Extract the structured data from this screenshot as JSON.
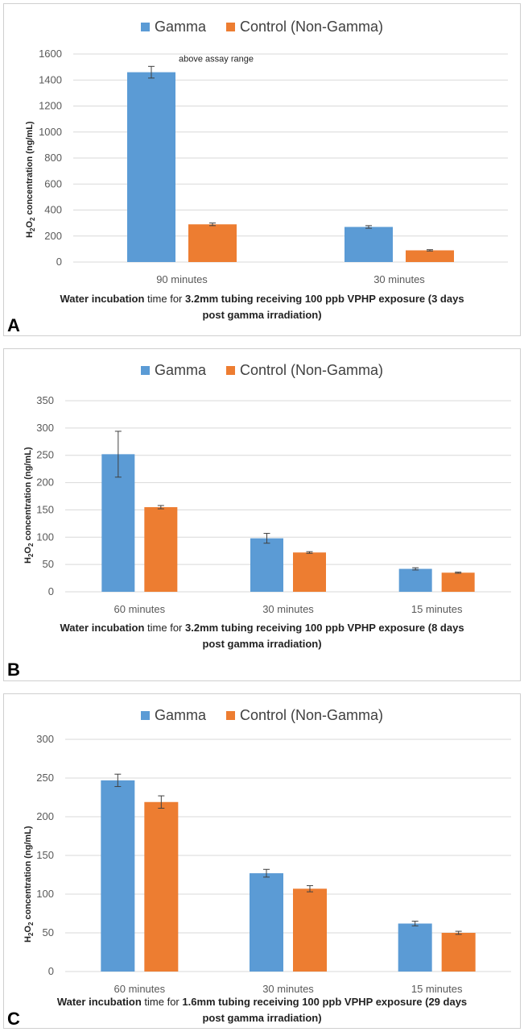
{
  "colors": {
    "gamma": "#5b9bd5",
    "control": "#ed7d31",
    "grid": "#d9d9d9",
    "axis_text": "#595959"
  },
  "chart_data": [
    {
      "panel": "A",
      "type": "bar",
      "legend": [
        "Gamma",
        "Control (Non-Gamma)"
      ],
      "legend_position": "top",
      "categories": [
        "90 minutes",
        "30 minutes"
      ],
      "series": [
        {
          "name": "Gamma",
          "values": [
            1460,
            270
          ],
          "errors": [
            45,
            10
          ]
        },
        {
          "name": "Control (Non-Gamma)",
          "values": [
            290,
            90
          ],
          "errors": [
            10,
            5
          ]
        }
      ],
      "ylim": [
        0,
        1600
      ],
      "yticks": [
        0,
        200,
        400,
        600,
        800,
        1000,
        1200,
        1400,
        1600
      ],
      "annotation": "above assay range",
      "ylabel_main": "H",
      "ylabel_sub1": "2",
      "ylabel_mid": "O",
      "ylabel_sub2": "2",
      "ylabel_rest": " concentration (ng/mL)",
      "xlabel_bold_1": "Water incubation",
      "xlabel_normal": " time for ",
      "xlabel_bold_2": " 3.2mm tubing receiving 100 ppb VPHP exposure (3 days",
      "xlabel_line2": "post gamma irradiation)",
      "grid": true
    },
    {
      "panel": "B",
      "type": "bar",
      "legend": [
        "Gamma",
        "Control (Non-Gamma)"
      ],
      "legend_position": "top",
      "categories": [
        "60 minutes",
        "30 minutes",
        "15 minutes"
      ],
      "series": [
        {
          "name": "Gamma",
          "values": [
            252,
            98,
            42
          ],
          "errors": [
            42,
            9,
            2
          ]
        },
        {
          "name": "Control (Non-Gamma)",
          "values": [
            155,
            72,
            35
          ],
          "errors": [
            3,
            1.5,
            1
          ]
        }
      ],
      "ylim": [
        0,
        350
      ],
      "yticks": [
        0,
        50,
        100,
        150,
        200,
        250,
        300,
        350
      ],
      "ylabel_main": "H",
      "ylabel_sub1": "2",
      "ylabel_mid": "O",
      "ylabel_sub2": "2",
      "ylabel_rest": " concentration (ng/mL)",
      "xlabel_bold_1": "Water incubation",
      "xlabel_normal": " time for ",
      "xlabel_bold_2": " 3.2mm tubing receiving 100 ppb VPHP exposure (8 days",
      "xlabel_line2": "post gamma irradiation)",
      "grid": true
    },
    {
      "panel": "C",
      "type": "bar",
      "legend": [
        "Gamma",
        "Control (Non-Gamma)"
      ],
      "legend_position": "top",
      "categories": [
        "60 minutes",
        "30 minutes",
        "15 minutes"
      ],
      "series": [
        {
          "name": "Gamma",
          "values": [
            247,
            127,
            62
          ],
          "errors": [
            8,
            5,
            3
          ]
        },
        {
          "name": "Control (Non-Gamma)",
          "values": [
            219,
            107,
            50
          ],
          "errors": [
            8,
            4,
            2
          ]
        }
      ],
      "ylim": [
        0,
        300
      ],
      "yticks": [
        0,
        50,
        100,
        150,
        200,
        250,
        300
      ],
      "ylabel_main": "H",
      "ylabel_sub1": "2",
      "ylabel_mid": "O",
      "ylabel_sub2": "2",
      "ylabel_rest": " concentration (ng/mL)",
      "xlabel_bold_1": "Water incubation",
      "xlabel_normal": " time for ",
      "xlabel_bold_2": "1.6mm tubing receiving 100 ppb VPHP exposure (29 days",
      "xlabel_line2": "post gamma irradiation)",
      "grid": true
    }
  ]
}
